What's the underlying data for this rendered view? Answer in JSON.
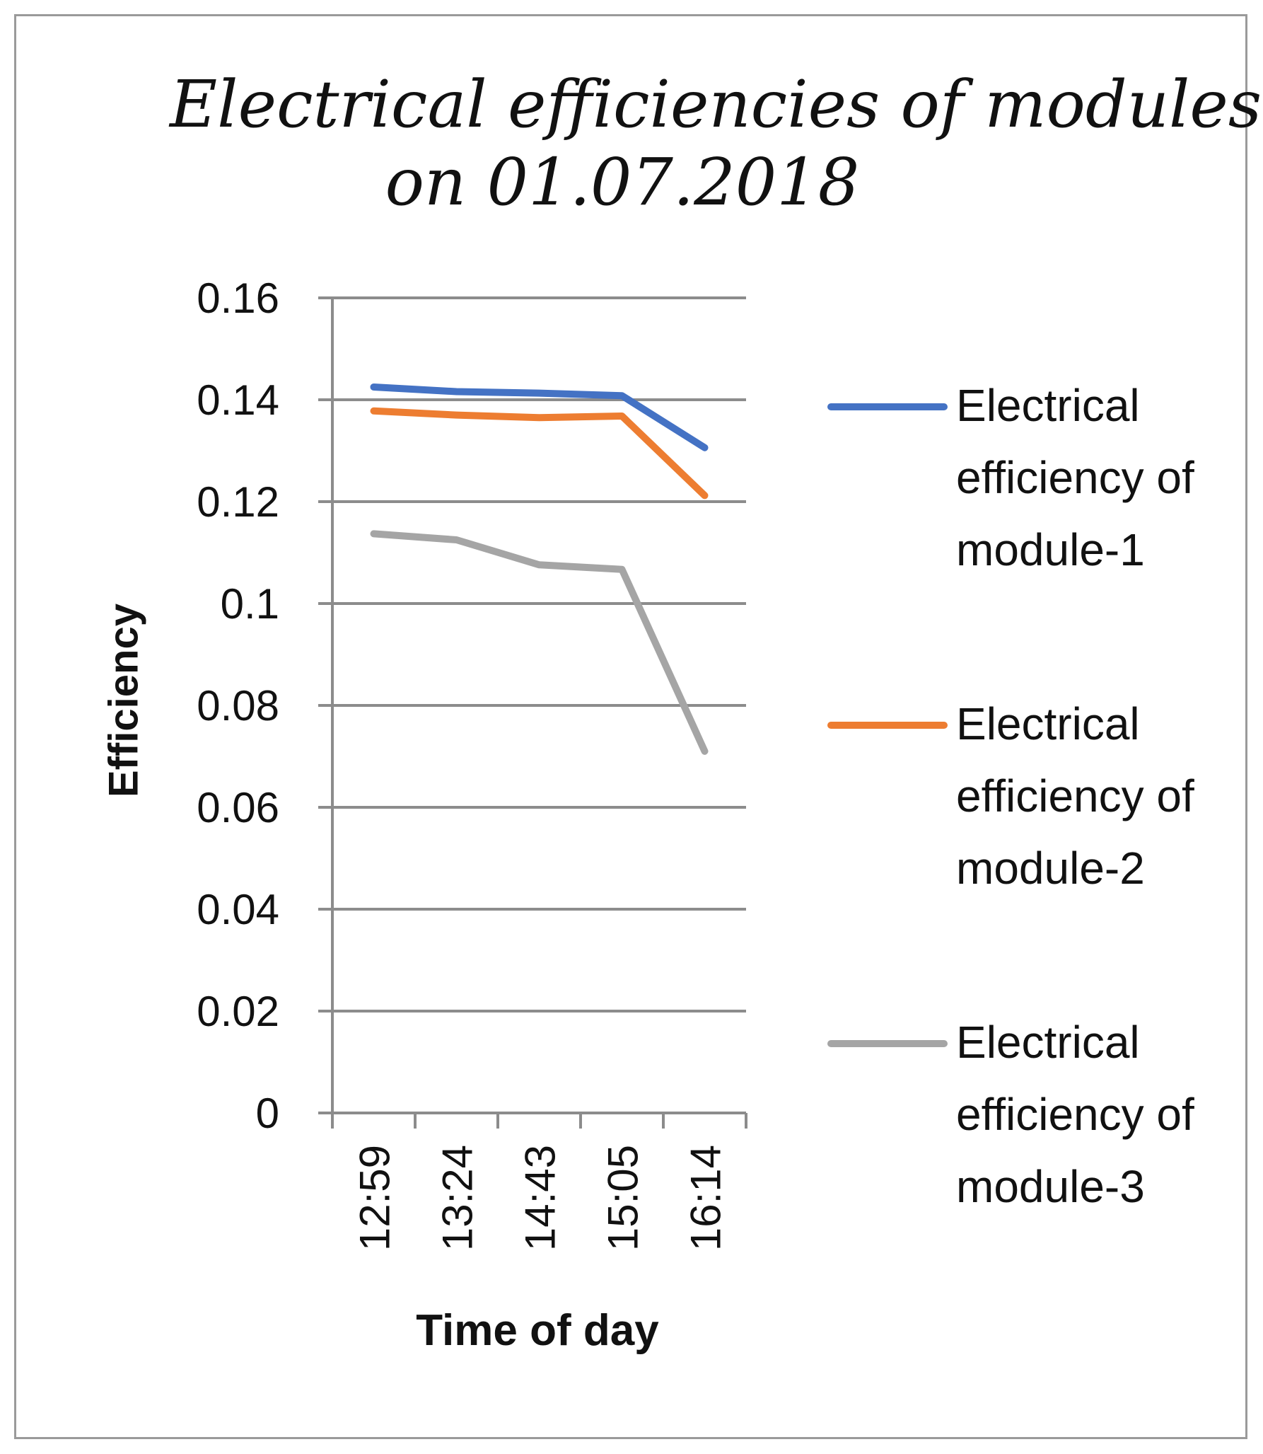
{
  "chart_data": {
    "type": "line",
    "title_lines": [
      "Electrical efficiencies of modules",
      "on 01.07.2018"
    ],
    "xlabel": "Time of day",
    "ylabel": "Efficiency",
    "categories": [
      "12:59",
      "13:24",
      "14:43",
      "15:05",
      "16:14"
    ],
    "yticks": [
      "0",
      "0.02",
      "0.04",
      "0.06",
      "0.08",
      "0.1",
      "0.12",
      "0.14",
      "0.16"
    ],
    "ylim": [
      0,
      0.16
    ],
    "grid": true,
    "legend_position": "right",
    "series": [
      {
        "name": "Electrical efficiency of module-1",
        "color": "#4472C4",
        "values": [
          0.1425,
          0.1416,
          0.1413,
          0.1408,
          0.1306
        ]
      },
      {
        "name": "Electrical efficiency of module-2",
        "color": "#ED7D31",
        "values": [
          0.1378,
          0.137,
          0.1365,
          0.1368,
          0.1212
        ]
      },
      {
        "name": "Electrical efficiency of module-3",
        "color": "#A5A5A5",
        "values": [
          0.1137,
          0.1125,
          0.1076,
          0.1067,
          0.071
        ]
      }
    ]
  }
}
